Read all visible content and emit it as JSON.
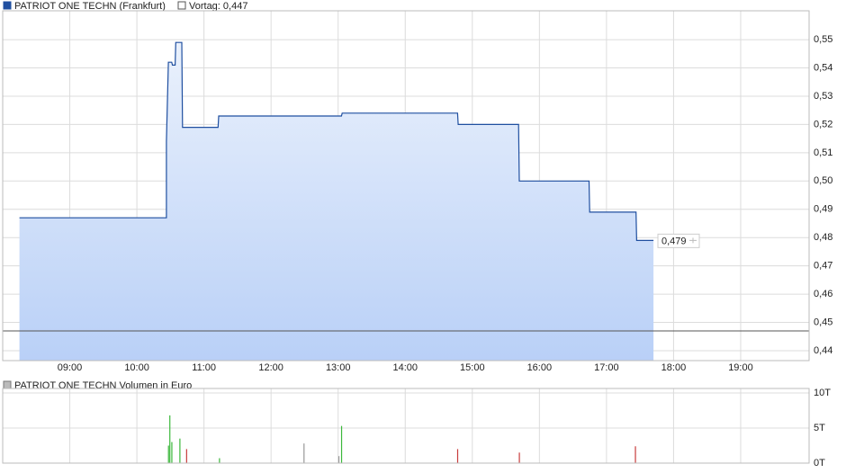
{
  "chart_data": [
    {
      "type": "line",
      "series": [
        {
          "name": "PATRIOT ONE TECHN (Frankfurt)",
          "color": "#1f4fa0",
          "x": [
            8.25,
            10.44,
            10.44,
            10.47,
            10.52,
            10.53,
            10.57,
            10.58,
            10.67,
            10.68,
            11.21,
            11.22,
            13.05,
            13.06,
            14.78,
            14.79,
            15.69,
            15.7,
            16.74,
            16.75,
            17.44,
            17.45,
            17.7
          ],
          "values": [
            0.487,
            0.487,
            0.514,
            0.542,
            0.542,
            0.541,
            0.541,
            0.549,
            0.549,
            0.519,
            0.519,
            0.523,
            0.523,
            0.524,
            0.524,
            0.52,
            0.52,
            0.5,
            0.5,
            0.489,
            0.489,
            0.479,
            0.479
          ]
        }
      ],
      "reference_label": "Vortag: 0,447",
      "reference_value": 0.447,
      "last_value": 0.479,
      "last_label": "0,479",
      "xlim": [
        8.0,
        20.02
      ],
      "xticks": [
        {
          "value": 9,
          "label": "09:00"
        },
        {
          "value": 10,
          "label": "10:00"
        },
        {
          "value": 11,
          "label": "11:00"
        },
        {
          "value": 12,
          "label": "12:00"
        },
        {
          "value": 13,
          "label": "13:00"
        },
        {
          "value": 14,
          "label": "14:00"
        },
        {
          "value": 15,
          "label": "15:00"
        },
        {
          "value": 16,
          "label": "16:00"
        },
        {
          "value": 17,
          "label": "17:00"
        },
        {
          "value": 18,
          "label": "18:00"
        },
        {
          "value": 19,
          "label": "19:00"
        }
      ],
      "ylim": [
        0.4365,
        0.5602
      ],
      "yticks": [
        {
          "value": 0.44,
          "label": "0,44"
        },
        {
          "value": 0.45,
          "label": "0,45"
        },
        {
          "value": 0.46,
          "label": "0,46"
        },
        {
          "value": 0.47,
          "label": "0,47"
        },
        {
          "value": 0.48,
          "label": "0,48"
        },
        {
          "value": 0.49,
          "label": "0,49"
        },
        {
          "value": 0.5,
          "label": "0,50"
        },
        {
          "value": 0.51,
          "label": "0,51"
        },
        {
          "value": 0.52,
          "label": "0,52"
        },
        {
          "value": 0.53,
          "label": "0,53"
        },
        {
          "value": 0.54,
          "label": "0,54"
        },
        {
          "value": 0.55,
          "label": "0,55"
        }
      ],
      "grid": true
    },
    {
      "type": "bar",
      "title": "PATRIOT ONE TECHN Volumen in Euro",
      "x": [
        10.47,
        10.49,
        10.52,
        10.64,
        10.74,
        11.23,
        12.49,
        13.01,
        13.05,
        14.78,
        15.7,
        17.43
      ],
      "values": [
        2500,
        6800,
        3000,
        3500,
        2000,
        700,
        2800,
        1000,
        5300,
        2000,
        1500,
        2400
      ],
      "colors": [
        "#3cb83c",
        "#3cb83c",
        "#3cb83c",
        "#3cb83c",
        "#c83c3c",
        "#3cb83c",
        "#999999",
        "#999999",
        "#3cb83c",
        "#c83c3c",
        "#c83c3c",
        "#c83c3c"
      ],
      "xlim": [
        8.0,
        20.02
      ],
      "ylim": [
        0,
        10640
      ],
      "yticks": [
        {
          "value": 0,
          "label": "0T"
        },
        {
          "value": 5000,
          "label": "5T"
        },
        {
          "value": 10000,
          "label": "10T"
        }
      ],
      "grid": true
    }
  ]
}
